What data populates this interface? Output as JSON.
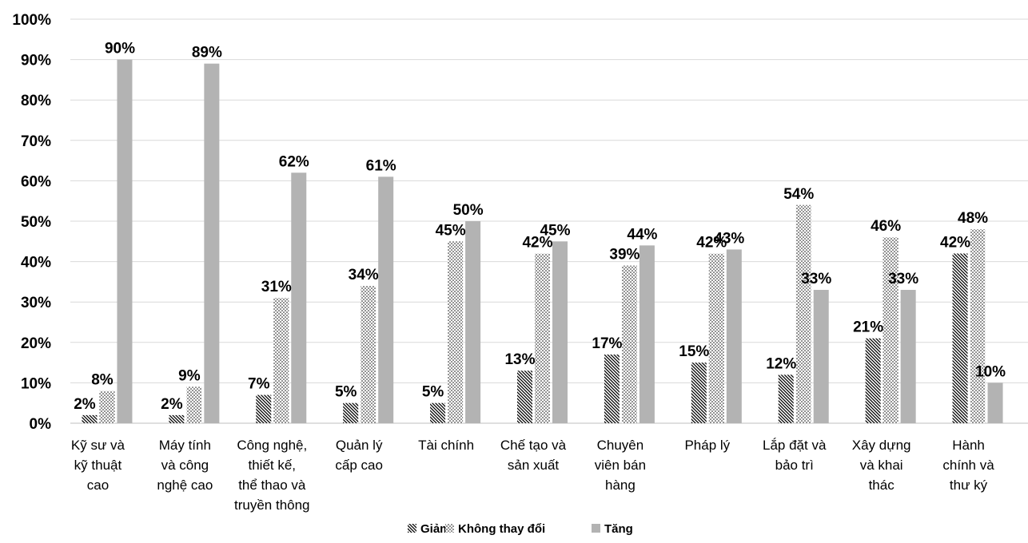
{
  "chart_data": {
    "type": "bar",
    "title": "",
    "xlabel": "",
    "ylabel": "",
    "ylim": [
      0,
      100
    ],
    "y_ticks": [
      "0%",
      "10%",
      "20%",
      "30%",
      "40%",
      "50%",
      "60%",
      "70%",
      "80%",
      "90%",
      "100%"
    ],
    "grid": "horizontal",
    "legend_position": "bottom",
    "categories": [
      [
        "Kỹ sư và",
        "kỹ thuật",
        "cao"
      ],
      [
        "Máy tính",
        "và công",
        "nghệ cao"
      ],
      [
        "Công nghệ,",
        "thiết kế,",
        "thể thao và",
        "truyền thông"
      ],
      [
        "Quản lý",
        "cấp cao"
      ],
      [
        "Tài chính"
      ],
      [
        "Chế tạo và",
        "sản xuất"
      ],
      [
        "Chuyên",
        "viên bán",
        "hàng"
      ],
      [
        "Pháp lý"
      ],
      [
        "Lắp đặt và",
        "bảo trì"
      ],
      [
        "Xây dựng",
        "và khai",
        "thác"
      ],
      [
        "Hành",
        "chính và",
        "thư ký"
      ]
    ],
    "series": [
      {
        "name": "Giảm",
        "pattern": "diagonal-hatch",
        "color": "#000000",
        "values": [
          2,
          2,
          7,
          5,
          5,
          13,
          17,
          15,
          12,
          21,
          42
        ]
      },
      {
        "name": "Không thay đổi",
        "pattern": "dots",
        "color": "#000000",
        "values": [
          8,
          9,
          31,
          34,
          45,
          42,
          39,
          42,
          54,
          46,
          48
        ]
      },
      {
        "name": "Tăng",
        "pattern": "solid",
        "color": "#b3b3b3",
        "values": [
          90,
          89,
          62,
          61,
          50,
          45,
          44,
          43,
          33,
          33,
          10
        ]
      }
    ],
    "value_suffix": "%"
  }
}
